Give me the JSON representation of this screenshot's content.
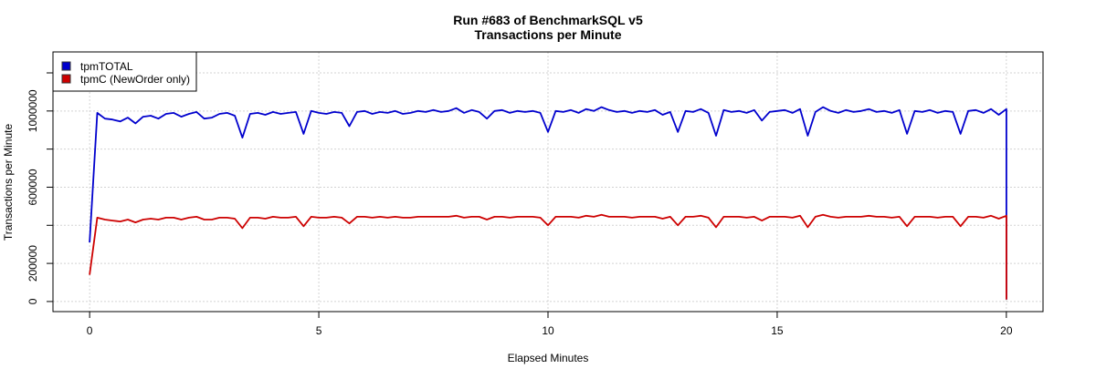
{
  "chart_data": {
    "type": "line",
    "title": "Run #683 of BenchmarkSQL v5",
    "subtitle": "Transactions per Minute",
    "xlabel": "Elapsed Minutes",
    "ylabel": "Transactions per Minute",
    "xlim": [
      -0.8,
      20.8
    ],
    "ylim": [
      -53000,
      1310000
    ],
    "x_ticks": [
      0,
      5,
      10,
      15,
      20
    ],
    "x_tick_labels": [
      "0",
      "5",
      "10",
      "15",
      "20"
    ],
    "y_ticks": [
      0,
      200000,
      400000,
      600000,
      800000,
      1000000,
      1200000
    ],
    "y_tick_labels": [
      "0",
      "200000",
      "",
      "600000",
      "",
      "1000000",
      ""
    ],
    "grid": true,
    "legend_placement": "top-left",
    "x_start": 0,
    "x_step": 0.16667,
    "series": [
      {
        "name": "tpmTOTAL",
        "color": "#0000cd",
        "values": [
          310000,
          990000,
          960000,
          955000,
          945000,
          965000,
          935000,
          970000,
          975000,
          960000,
          985000,
          990000,
          970000,
          985000,
          995000,
          960000,
          965000,
          985000,
          990000,
          975000,
          860000,
          985000,
          990000,
          980000,
          995000,
          985000,
          990000,
          995000,
          880000,
          1000000,
          990000,
          985000,
          995000,
          990000,
          920000,
          995000,
          1000000,
          985000,
          995000,
          990000,
          1000000,
          985000,
          990000,
          1000000,
          995000,
          1005000,
          995000,
          1000000,
          1015000,
          990000,
          1005000,
          995000,
          960000,
          1000000,
          1005000,
          990000,
          1000000,
          995000,
          1000000,
          990000,
          890000,
          1000000,
          995000,
          1005000,
          990000,
          1010000,
          1000000,
          1020000,
          1005000,
          995000,
          1000000,
          990000,
          1000000,
          995000,
          1005000,
          980000,
          995000,
          890000,
          1000000,
          995000,
          1010000,
          990000,
          870000,
          1005000,
          995000,
          1000000,
          990000,
          1005000,
          950000,
          995000,
          1000000,
          1005000,
          990000,
          1010000,
          870000,
          995000,
          1020000,
          1000000,
          990000,
          1005000,
          995000,
          1000000,
          1010000,
          995000,
          1000000,
          990000,
          1005000,
          880000,
          1000000,
          995000,
          1005000,
          990000,
          1000000,
          995000,
          880000,
          1000000,
          1005000,
          990000,
          1010000,
          980000,
          1010000
        ],
        "final_value": 10000
      },
      {
        "name": "tpmC (NewOrder only)",
        "color": "#cd0000",
        "values": [
          140000,
          440000,
          430000,
          425000,
          420000,
          430000,
          415000,
          430000,
          435000,
          430000,
          440000,
          440000,
          430000,
          440000,
          445000,
          430000,
          430000,
          440000,
          440000,
          435000,
          385000,
          440000,
          440000,
          435000,
          445000,
          440000,
          440000,
          445000,
          395000,
          445000,
          440000,
          440000,
          445000,
          440000,
          410000,
          445000,
          445000,
          440000,
          445000,
          440000,
          445000,
          440000,
          440000,
          445000,
          445000,
          445000,
          445000,
          445000,
          450000,
          440000,
          445000,
          445000,
          430000,
          445000,
          445000,
          440000,
          445000,
          445000,
          445000,
          440000,
          400000,
          445000,
          445000,
          445000,
          440000,
          450000,
          445000,
          455000,
          445000,
          445000,
          445000,
          440000,
          445000,
          445000,
          445000,
          435000,
          445000,
          400000,
          445000,
          445000,
          450000,
          440000,
          390000,
          445000,
          445000,
          445000,
          440000,
          445000,
          425000,
          445000,
          445000,
          445000,
          440000,
          450000,
          390000,
          445000,
          455000,
          445000,
          440000,
          445000,
          445000,
          445000,
          450000,
          445000,
          445000,
          440000,
          445000,
          395000,
          445000,
          445000,
          445000,
          440000,
          445000,
          445000,
          395000,
          445000,
          445000,
          440000,
          450000,
          435000,
          450000
        ],
        "final_value": 10000
      }
    ]
  }
}
